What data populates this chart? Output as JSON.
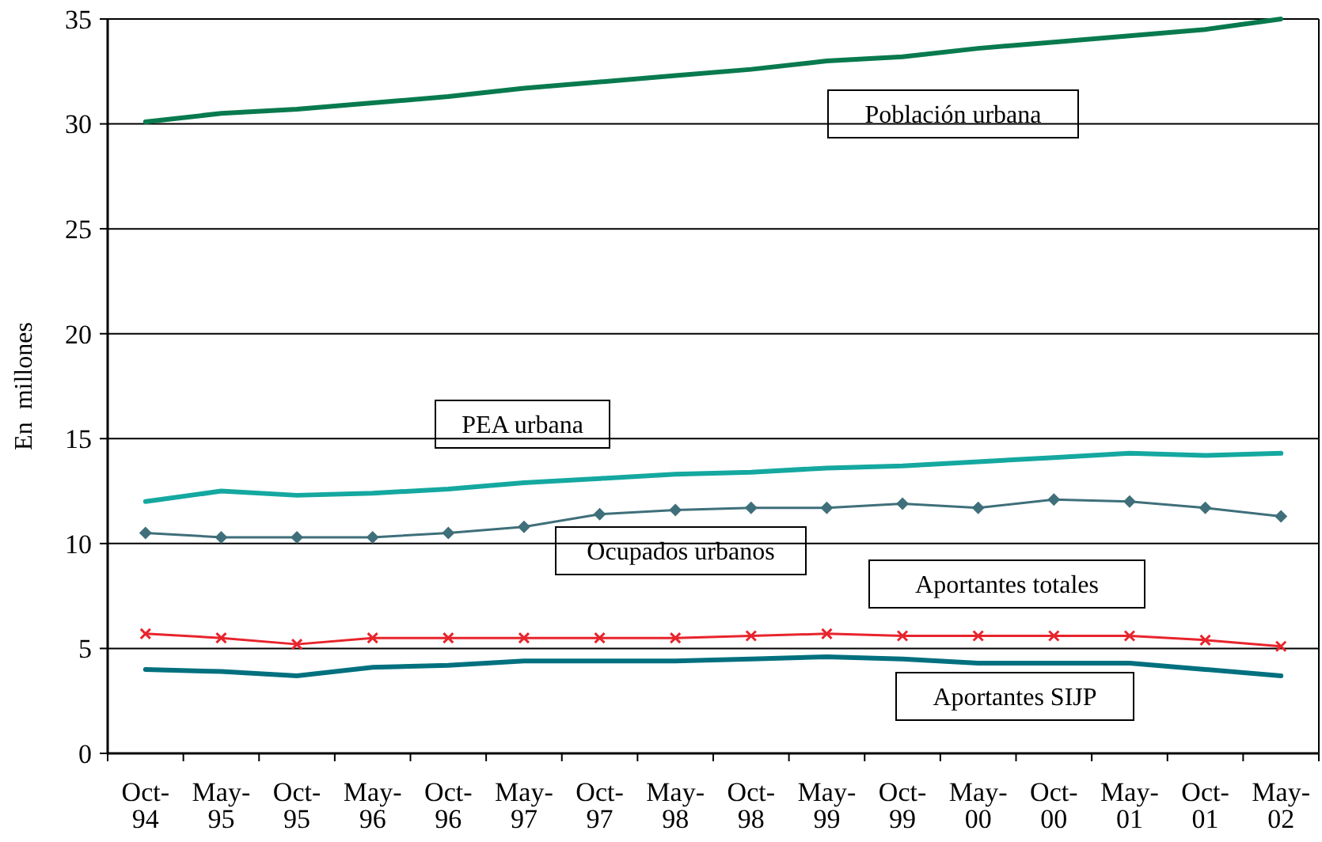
{
  "chart_data": {
    "type": "line",
    "ylabel": "En  millones",
    "categories": [
      "Oct-94",
      "May-95",
      "Oct-95",
      "May-96",
      "Oct-96",
      "May-97",
      "Oct-97",
      "May-98",
      "Oct-98",
      "May-99",
      "Oct-99",
      "May-00",
      "Oct-00",
      "May-01",
      "Oct-01",
      "May-02"
    ],
    "ylim": [
      0,
      35
    ],
    "yticks": [
      0,
      5,
      10,
      15,
      20,
      25,
      30,
      35
    ],
    "grid": "y",
    "series": [
      {
        "name": "Población urbana",
        "color": "#087a4e",
        "marker": "none",
        "values": [
          30.1,
          30.5,
          30.7,
          31.0,
          31.3,
          31.7,
          32.0,
          32.3,
          32.6,
          33.0,
          33.2,
          33.6,
          33.9,
          34.2,
          34.5,
          35.0
        ]
      },
      {
        "name": "PEA urbana",
        "color": "#14a8a0",
        "marker": "none",
        "values": [
          12.0,
          12.5,
          12.3,
          12.4,
          12.6,
          12.9,
          13.1,
          13.3,
          13.4,
          13.6,
          13.7,
          13.9,
          14.1,
          14.3,
          14.2,
          14.3
        ]
      },
      {
        "name": "Ocupados urbanos",
        "color": "#3f6f7a",
        "marker": "diamond",
        "values": [
          10.5,
          10.3,
          10.3,
          10.3,
          10.5,
          10.8,
          11.4,
          11.6,
          11.7,
          11.7,
          11.9,
          11.7,
          12.1,
          12.0,
          11.7,
          11.3
        ]
      },
      {
        "name": "Aportantes totales",
        "color": "#e8242c",
        "marker": "cross",
        "values": [
          5.7,
          5.5,
          5.2,
          5.5,
          5.5,
          5.5,
          5.5,
          5.5,
          5.6,
          5.7,
          5.6,
          5.6,
          5.6,
          5.6,
          5.4,
          5.1
        ]
      },
      {
        "name": "Aportantes SIJP",
        "color": "#00707f",
        "marker": "none",
        "values": [
          4.0,
          3.9,
          3.7,
          4.1,
          4.2,
          4.4,
          4.4,
          4.4,
          4.5,
          4.6,
          4.5,
          4.3,
          4.3,
          4.3,
          4.0,
          3.7
        ]
      }
    ]
  }
}
